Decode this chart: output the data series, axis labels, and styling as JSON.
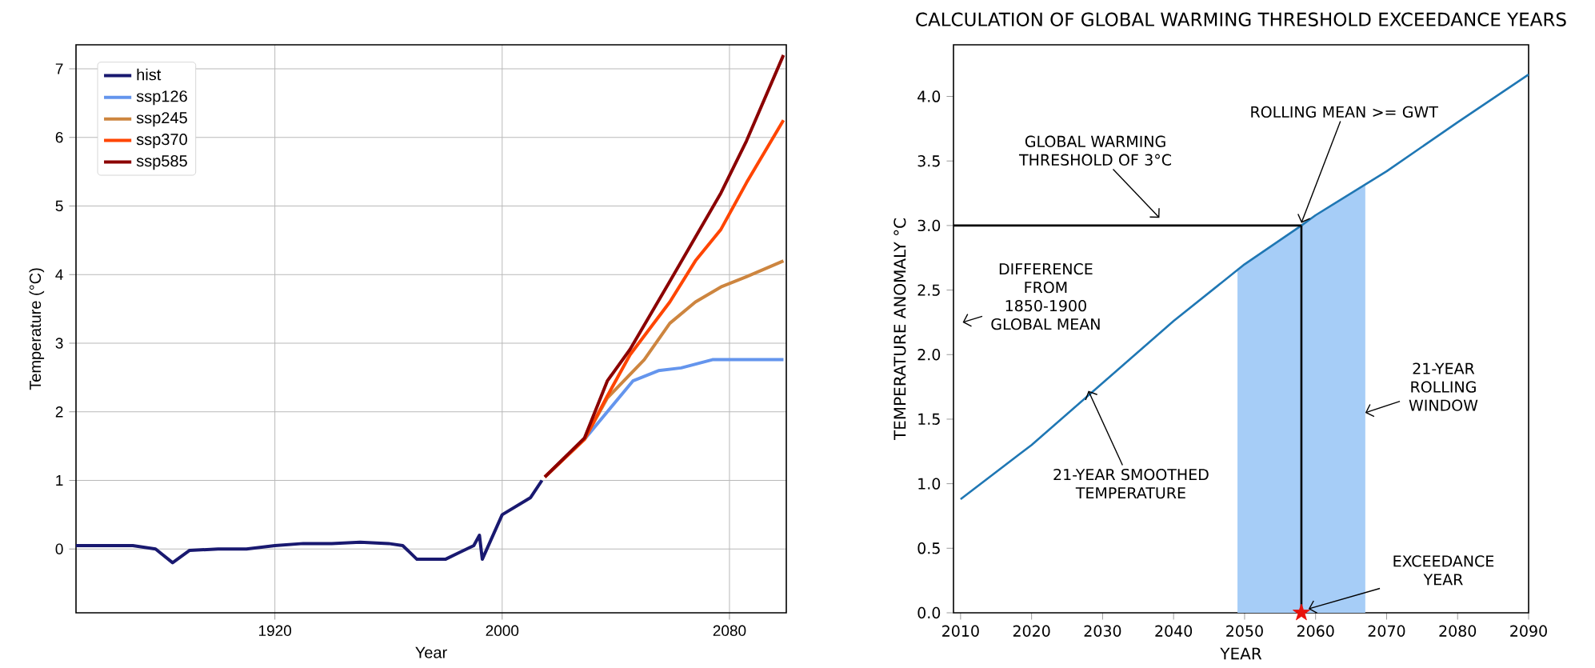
{
  "chart_data": [
    {
      "type": "line",
      "xlabel": "Year",
      "ylabel": "Temperature (°C)",
      "xlim": [
        1850,
        2100
      ],
      "ylim": [
        -0.93,
        7.35
      ],
      "xticks": [
        1920,
        2000,
        2080
      ],
      "yticks": [
        0,
        1,
        2,
        3,
        4,
        5,
        6,
        7
      ],
      "grid": true,
      "legend": "top left",
      "series": [
        {
          "name": "hist",
          "color": "#191970",
          "x": [
            1850,
            1860,
            1870,
            1878,
            1884,
            1890,
            1900,
            1910,
            1920,
            1930,
            1940,
            1950,
            1960,
            1965,
            1970,
            1980,
            1985,
            1990,
            1992,
            1993,
            2000,
            2010,
            2014
          ],
          "values": [
            0.05,
            0.05,
            0.05,
            0.0,
            -0.2,
            -0.02,
            0.0,
            0.0,
            0.05,
            0.08,
            0.08,
            0.1,
            0.08,
            0.05,
            -0.15,
            -0.15,
            -0.05,
            0.05,
            0.2,
            -0.15,
            0.5,
            0.75,
            1.0
          ]
        },
        {
          "name": "ssp126",
          "color": "#6495ed",
          "x": [
            2029,
            2037,
            2046,
            2055,
            2063,
            2074,
            2086,
            2099
          ],
          "values": [
            1.6,
            2.0,
            2.45,
            2.6,
            2.64,
            2.76,
            2.76,
            2.76
          ]
        },
        {
          "name": "ssp245",
          "color": "#cd853f",
          "x": [
            2015,
            2029,
            2037,
            2050,
            2059,
            2068,
            2077,
            2086,
            2099
          ],
          "values": [
            1.05,
            1.6,
            2.2,
            2.76,
            3.29,
            3.6,
            3.82,
            3.97,
            4.2
          ]
        },
        {
          "name": "ssp370",
          "color": "#ff4500",
          "x": [
            2015,
            2029,
            2037,
            2045,
            2059,
            2068,
            2077,
            2086,
            2099
          ],
          "values": [
            1.05,
            1.6,
            2.23,
            2.83,
            3.6,
            4.2,
            4.66,
            5.34,
            6.25
          ]
        },
        {
          "name": "ssp585",
          "color": "#8b0000",
          "x": [
            2015,
            2029,
            2037,
            2045,
            2059,
            2077,
            2086,
            2099
          ],
          "values": [
            1.05,
            1.62,
            2.45,
            2.91,
            3.9,
            5.19,
            5.95,
            7.2
          ]
        }
      ]
    },
    {
      "type": "line",
      "title": "CALCULATION OF GLOBAL WARMING THRESHOLD EXCEEDANCE YEARS",
      "xlabel": "YEAR",
      "ylabel": "TEMPERATURE ANOMALY °C",
      "xlim": [
        2009,
        2090
      ],
      "ylim": [
        0,
        4.4
      ],
      "xticks": [
        2010,
        2020,
        2030,
        2040,
        2050,
        2060,
        2070,
        2080,
        2090
      ],
      "yticks": [
        {
          "value": 0,
          "label": "0.0"
        },
        {
          "value": 0.5,
          "label": "0.5"
        },
        {
          "value": 1,
          "label": "1.0"
        },
        {
          "value": 1.5,
          "label": "1.5"
        },
        {
          "value": 2,
          "label": "2.0"
        },
        {
          "value": 2.5,
          "label": "2.5"
        },
        {
          "value": 3,
          "label": "3.0"
        },
        {
          "value": 3.5,
          "label": "3.5"
        },
        {
          "value": 4,
          "label": "4.0"
        }
      ],
      "series": [
        {
          "type": "area",
          "color": "#a6cdf7",
          "x": [
            2049,
            2050,
            2058,
            2060,
            2067
          ],
          "values": [
            2.66,
            2.7,
            3.0,
            3.08,
            3.31
          ]
        },
        {
          "type": "line",
          "color": "#1f77b4",
          "x": [
            2010,
            2020,
            2030,
            2040,
            2050,
            2058,
            2060,
            2070,
            2080,
            2090
          ],
          "values": [
            0.88,
            1.3,
            1.78,
            2.26,
            2.7,
            3.0,
            3.08,
            3.42,
            3.8,
            4.17
          ]
        },
        {
          "type": "line",
          "color": "#000000",
          "x": [
            2009,
            2058
          ],
          "values": [
            3.0,
            3.0
          ]
        },
        {
          "type": "line",
          "color": "#000000",
          "x": [
            2058,
            2058
          ],
          "values": [
            0.0,
            3.0
          ]
        },
        {
          "type": "scatter",
          "color": "#e8120c",
          "marker": "star",
          "x": [
            2058
          ],
          "values": [
            0.0
          ]
        }
      ],
      "annotations": [
        "GLOBAL WARMING THRESHOLD OF 3°C",
        {
          "text": "ROLLING MEAN >= GWT",
          "x": 2058,
          "y": 3.02
        },
        "DIFFERENCE FROM 1850-1900 GLOBAL MEAN",
        {
          "text": "21-YEAR SMOOTHED TEMPERATURE",
          "x": 2028,
          "y": 1.72
        },
        {
          "text": "21-YEAR ROLLING WINDOW",
          "x": 2067,
          "y": 1.55
        },
        {
          "text": "EXCEEDANCE YEAR",
          "x": 2059,
          "y": 0.03
        }
      ]
    }
  ]
}
